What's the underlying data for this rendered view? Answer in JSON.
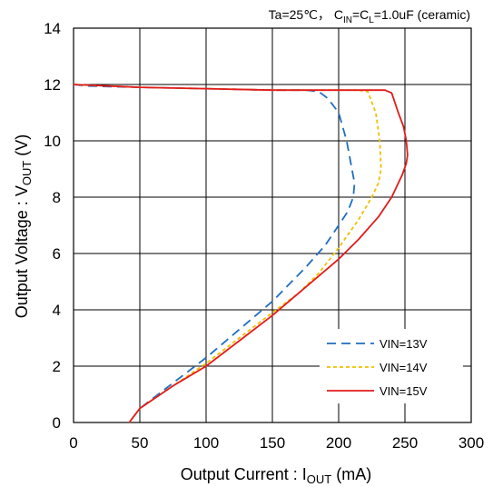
{
  "chart_data": {
    "type": "line",
    "conditions": {
      "prefix": "Ta=25℃， C",
      "cin_sub": "IN",
      "mid": "=C",
      "cl_sub": "L",
      "suffix": "=1.0uF  (ceramic)"
    },
    "xlabel": {
      "prefix": "Output Current : I",
      "sub": "OUT",
      "suffix": " (mA)"
    },
    "ylabel": {
      "prefix": "Output Voltage : V",
      "sub": "OUT",
      "suffix": " (V)"
    },
    "xlim": [
      0,
      300
    ],
    "ylim": [
      0,
      14
    ],
    "xticks": [
      0,
      50,
      100,
      150,
      200,
      250,
      300
    ],
    "yticks": [
      0,
      2,
      4,
      6,
      8,
      10,
      12,
      14
    ],
    "grid": true,
    "legend_position": "lower-right",
    "series": [
      {
        "name": "VIN=13V",
        "color": "#1f6fbf",
        "dash": "10,6",
        "x": [
          0,
          10,
          50,
          100,
          150,
          175,
          185,
          192,
          200,
          206,
          210,
          212,
          211,
          207,
          200,
          190,
          175,
          150,
          125,
          100,
          75,
          50,
          42
        ],
        "y": [
          12.0,
          11.95,
          11.9,
          11.85,
          11.8,
          11.8,
          11.75,
          11.5,
          11.0,
          10.0,
          9.0,
          8.5,
          8.0,
          7.5,
          7.0,
          6.3,
          5.5,
          4.3,
          3.3,
          2.3,
          1.4,
          0.5,
          0.0
        ]
      },
      {
        "name": "VIN=14V",
        "color": "#f0c000",
        "dash": "4,3",
        "x": [
          0,
          50,
          100,
          150,
          200,
          215,
          222,
          228,
          231,
          232,
          230,
          225,
          215,
          200,
          185,
          170,
          150,
          125,
          100,
          75,
          50,
          42
        ],
        "y": [
          12.0,
          11.9,
          11.85,
          11.8,
          11.8,
          11.8,
          11.75,
          11.0,
          10.0,
          9.0,
          8.5,
          8.0,
          7.2,
          6.2,
          5.3,
          4.6,
          3.9,
          3.0,
          2.1,
          1.3,
          0.5,
          0.0
        ]
      },
      {
        "name": "VIN=15V",
        "color": "#e31b1b",
        "dash": "",
        "x": [
          0,
          50,
          100,
          150,
          200,
          235,
          240,
          245,
          249,
          251,
          252,
          251,
          248,
          240,
          230,
          215,
          200,
          175,
          150,
          125,
          100,
          75,
          50,
          42
        ],
        "y": [
          12.0,
          11.9,
          11.85,
          11.8,
          11.8,
          11.8,
          11.7,
          11.0,
          10.5,
          10.0,
          9.5,
          9.2,
          8.8,
          8.0,
          7.3,
          6.5,
          5.8,
          4.8,
          3.8,
          2.9,
          2.0,
          1.3,
          0.5,
          0.0
        ]
      }
    ]
  }
}
